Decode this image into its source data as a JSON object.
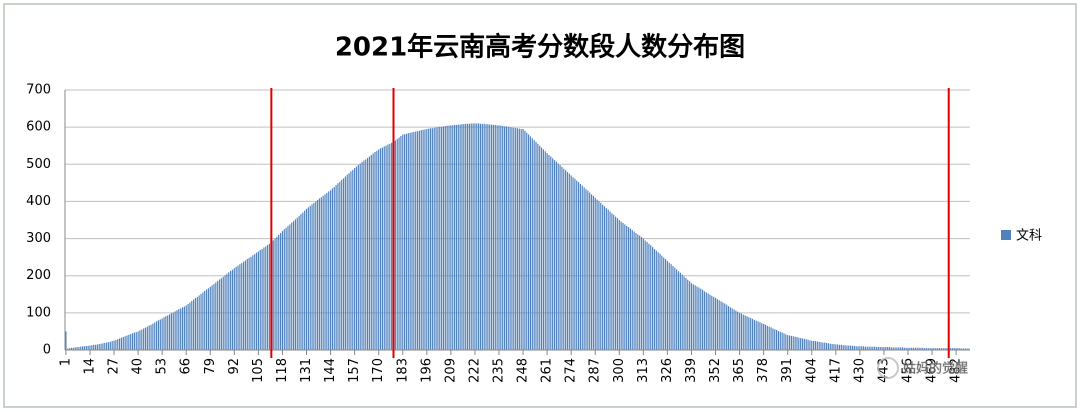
{
  "chart_data": {
    "type": "bar",
    "title": "2021年云南高考分数段人数分布图",
    "legend": "文科",
    "legend_position": "right",
    "color": "#4f81bd",
    "grid": true,
    "ylim": [
      0,
      700
    ],
    "yticks": [
      0,
      100,
      200,
      300,
      400,
      500,
      600,
      700
    ],
    "reference_lines": {
      "color": "#e00000",
      "categories": [
        112,
        178,
        478
      ]
    },
    "watermark": "姑妈的觉醒",
    "categories": [
      "1",
      null,
      null,
      null,
      null,
      null,
      null,
      null,
      null,
      null,
      null,
      null,
      null,
      "14",
      null,
      null,
      null,
      null,
      null,
      null,
      null,
      null,
      null,
      null,
      null,
      null,
      "27",
      null,
      null,
      null,
      null,
      null,
      null,
      null,
      null,
      null,
      null,
      null,
      null,
      "40",
      null,
      null,
      null,
      null,
      null,
      null,
      null,
      null,
      null,
      null,
      null,
      null,
      "53",
      null,
      null,
      null,
      null,
      null,
      null,
      null,
      null,
      null,
      null,
      null,
      null,
      "66",
      null,
      null,
      null,
      null,
      null,
      null,
      null,
      null,
      null,
      null,
      null,
      null,
      "79",
      null,
      null,
      null,
      null,
      null,
      null,
      null,
      null,
      null,
      null,
      null,
      null,
      "92",
      null,
      null,
      null,
      null,
      null,
      null,
      null,
      null,
      null,
      null,
      null,
      null,
      "105",
      null,
      null,
      null,
      null,
      null,
      null,
      null,
      null,
      null,
      null,
      null,
      null,
      "118",
      null,
      null,
      null,
      null,
      null,
      null,
      null,
      null,
      null,
      null,
      null,
      null,
      "131",
      null,
      null,
      null,
      null,
      null,
      null,
      null,
      null,
      null,
      null,
      null,
      null,
      "144",
      null,
      null,
      null,
      null,
      null,
      null,
      null,
      null,
      null,
      null,
      null,
      null,
      "157",
      null,
      null,
      null,
      null,
      null,
      null,
      null,
      null,
      null,
      null,
      null,
      null,
      "170",
      null,
      null,
      null,
      null,
      null,
      null,
      null,
      null,
      null,
      null,
      null,
      null,
      "183",
      null,
      null,
      null,
      null,
      null,
      null,
      null,
      null,
      null,
      null,
      null,
      null,
      "196",
      null,
      null,
      null,
      null,
      null,
      null,
      null,
      null,
      null,
      null,
      null,
      null,
      "209",
      null,
      null,
      null,
      null,
      null,
      null,
      null,
      null,
      null,
      null,
      null,
      null,
      "222",
      null,
      null,
      null,
      null,
      null,
      null,
      null,
      null,
      null,
      null,
      null,
      null,
      "235",
      null,
      null,
      null,
      null,
      null,
      null,
      null,
      null,
      null,
      null,
      null,
      null,
      "248",
      null,
      null,
      null,
      null,
      null,
      null,
      null,
      null,
      null,
      null,
      null,
      null,
      "261",
      null,
      null,
      null,
      null,
      null,
      null,
      null,
      null,
      null,
      null,
      null,
      null,
      "274",
      null,
      null,
      null,
      null,
      null,
      null,
      null,
      null,
      null,
      null,
      null,
      null,
      "287",
      null,
      null,
      null,
      null,
      null,
      null,
      null,
      null,
      null,
      null,
      null,
      null,
      "300",
      null,
      null,
      null,
      null,
      null,
      null,
      null,
      null,
      null,
      null,
      null,
      null,
      "313",
      null,
      null,
      null,
      null,
      null,
      null,
      null,
      null,
      null,
      null,
      null,
      null,
      "326",
      null,
      null,
      null,
      null,
      null,
      null,
      null,
      null,
      null,
      null,
      null,
      null,
      "339",
      null,
      null,
      null,
      null,
      null,
      null,
      null,
      null,
      null,
      null,
      null,
      null,
      "352",
      null,
      null,
      null,
      null,
      null,
      null,
      null,
      null,
      null,
      null,
      null,
      null,
      "365",
      null,
      null,
      null,
      null,
      null,
      null,
      null,
      null,
      null,
      null,
      null,
      null,
      "378",
      null,
      null,
      null,
      null,
      null,
      null,
      null,
      null,
      null,
      null,
      null,
      null,
      "391",
      null,
      null,
      null,
      null,
      null,
      null,
      null,
      null,
      null,
      null,
      null,
      null,
      "404",
      null,
      null,
      null,
      null,
      null,
      null,
      null,
      null,
      null,
      null,
      null,
      null,
      "417",
      null,
      null,
      null,
      null,
      null,
      null,
      null,
      null,
      null,
      null,
      null,
      null,
      "430",
      null,
      null,
      null,
      null,
      null,
      null,
      null,
      null,
      null,
      null,
      null,
      null,
      "443",
      null,
      null,
      null,
      null,
      null,
      null,
      null,
      null,
      null,
      null,
      null,
      null,
      "456",
      null,
      null,
      null,
      null,
      null,
      null,
      null,
      null,
      null,
      null,
      null,
      null,
      "469",
      null,
      null,
      null,
      null,
      null,
      null,
      null,
      null,
      null,
      null,
      null,
      null,
      "482",
      null,
      null,
      null,
      null,
      null,
      null,
      null
    ],
    "values": [
      50,
      4,
      5,
      6,
      6,
      7,
      8,
      8,
      9,
      10,
      10,
      11,
      11,
      12,
      13,
      14,
      14,
      15,
      16,
      17,
      18,
      19,
      20,
      21,
      22,
      24,
      25,
      27,
      29,
      31,
      33,
      35,
      37,
      39,
      41,
      43,
      45,
      47,
      48,
      50,
      53,
      55,
      58,
      60,
      63,
      66,
      68,
      71,
      74,
      77,
      80,
      82,
      85,
      88,
      91,
      93,
      96,
      99,
      101,
      104,
      107,
      110,
      112,
      115,
      117,
      120,
      124,
      128,
      132,
      136,
      140,
      143,
      147,
      151,
      155,
      159,
      163,
      166,
      170,
      174,
      178,
      182,
      186,
      190,
      193,
      197,
      201,
      205,
      209,
      213,
      216,
      220,
      224,
      227,
      231,
      234,
      238,
      241,
      245,
      248,
      251,
      255,
      258,
      262,
      265,
      269,
      272,
      276,
      279,
      283,
      286,
      290,
      295,
      300,
      305,
      310,
      315,
      320,
      325,
      329,
      334,
      338,
      343,
      347,
      352,
      356,
      361,
      366,
      370,
      375,
      380,
      384,
      388,
      392,
      396,
      400,
      404,
      408,
      411,
      415,
      419,
      423,
      427,
      430,
      435,
      439,
      444,
      449,
      453,
      458,
      462,
      467,
      472,
      476,
      481,
      485,
      490,
      494,
      498,
      502,
      506,
      510,
      513,
      517,
      521,
      525,
      529,
      533,
      536,
      540,
      543,
      545,
      548,
      550,
      553,
      555,
      558,
      560,
      564,
      568,
      572,
      576,
      580,
      581,
      582,
      584,
      585,
      586,
      587,
      588,
      589,
      590,
      592,
      593,
      594,
      595,
      596,
      597,
      597,
      598,
      599,
      600,
      601,
      601,
      602,
      603,
      604,
      604,
      605,
      605,
      606,
      606,
      607,
      607,
      608,
      608,
      609,
      609,
      609,
      610,
      610,
      610,
      610,
      610,
      609,
      609,
      609,
      608,
      608,
      607,
      607,
      606,
      606,
      605,
      605,
      604,
      603,
      602,
      602,
      601,
      600,
      599,
      598,
      598,
      597,
      596,
      595,
      595,
      590,
      585,
      580,
      575,
      570,
      565,
      560,
      555,
      550,
      545,
      540,
      535,
      530,
      525,
      521,
      516,
      511,
      507,
      502,
      498,
      493,
      488,
      484,
      479,
      475,
      470,
      465,
      461,
      456,
      452,
      447,
      443,
      438,
      433,
      429,
      424,
      419,
      415,
      410,
      405,
      401,
      396,
      391,
      387,
      382,
      378,
      373,
      368,
      364,
      359,
      355,
      350,
      346,
      342,
      338,
      334,
      331,
      327,
      323,
      319,
      315,
      311,
      308,
      304,
      300,
      295,
      291,
      286,
      282,
      277,
      272,
      268,
      263,
      259,
      254,
      249,
      245,
      240,
      235,
      231,
      226,
      222,
      217,
      212,
      208,
      203,
      198,
      194,
      189,
      185,
      180,
      177,
      174,
      171,
      168,
      165,
      162,
      158,
      155,
      152,
      149,
      146,
      143,
      140,
      137,
      134,
      131,
      128,
      125,
      122,
      118,
      115,
      112,
      109,
      106,
      103,
      100,
      98,
      95,
      93,
      91,
      88,
      86,
      84,
      81,
      79,
      77,
      75,
      72,
      70,
      68,
      65,
      63,
      61,
      58,
      56,
      54,
      51,
      49,
      47,
      45,
      42,
      40,
      39,
      38,
      37,
      36,
      35,
      33,
      32,
      31,
      30,
      29,
      28,
      26,
      25,
      24,
      24,
      23,
      22,
      21,
      20,
      20,
      19,
      18,
      17,
      16,
      16,
      15,
      15,
      14,
      14,
      13,
      13,
      12,
      12,
      12,
      11,
      11,
      10,
      10,
      10,
      10,
      10,
      9,
      9,
      9,
      9,
      9,
      9,
      8,
      8,
      8,
      8,
      8,
      8,
      8,
      8,
      7,
      7,
      7,
      7,
      7,
      7,
      7,
      6,
      6,
      6,
      6,
      6,
      6,
      6,
      6,
      6,
      6,
      6,
      5,
      5,
      5,
      5,
      5,
      5,
      5,
      5,
      5,
      5,
      5,
      5,
      5,
      5,
      5,
      5,
      5,
      5,
      5,
      5,
      4,
      4,
      4,
      4,
      4
    ]
  }
}
